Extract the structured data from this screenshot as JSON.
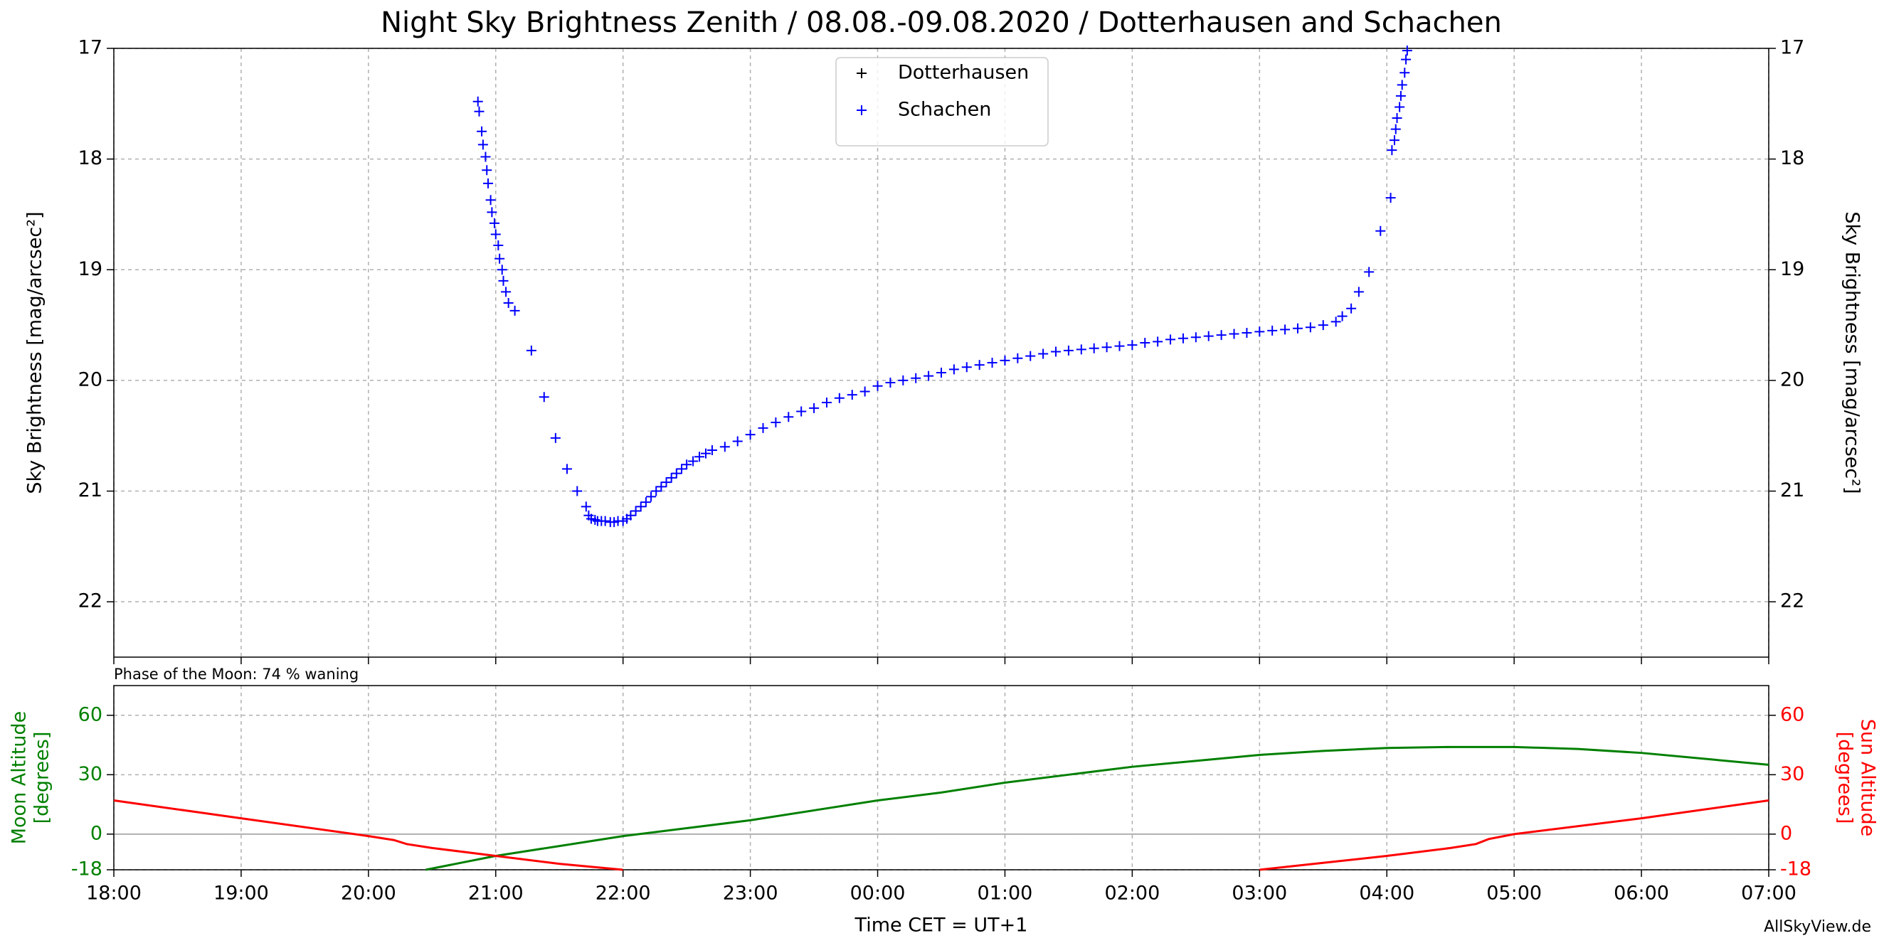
{
  "chart_data": [
    {
      "type": "scatter",
      "title": "Night Sky Brightness Zenith / 08.08.-09.08.2020 / Dotterhausen and Schachen",
      "ylabel": "Sky Brightness [mag/arcsec²]",
      "y2label": "Sky Brightness [mag/arcsec²]",
      "xlim": [
        18,
        31
      ],
      "xticks": [
        18,
        19,
        20,
        21,
        22,
        23,
        24,
        25,
        26,
        27,
        28,
        29,
        30,
        31
      ],
      "ylim": [
        22.5,
        17
      ],
      "yticks": [
        17,
        18,
        19,
        20,
        21,
        22
      ],
      "y2lim": [
        22.5,
        17
      ],
      "y2ticks": [
        17,
        18,
        19,
        20,
        21,
        22
      ],
      "grid": true,
      "legend": "upper center",
      "series": [
        {
          "name": "Dotterhausen",
          "color": "#000000",
          "x": [],
          "values": []
        },
        {
          "name": "Schachen",
          "color": "#0000ff",
          "x": [
            20.86,
            20.87,
            20.89,
            20.9,
            20.92,
            20.93,
            20.94,
            20.96,
            20.97,
            20.99,
            21.0,
            21.02,
            21.03,
            21.05,
            21.06,
            21.08,
            21.1,
            21.15,
            21.28,
            21.38,
            21.47,
            21.56,
            21.64,
            21.71,
            21.73,
            21.75,
            21.78,
            21.8,
            21.83,
            21.86,
            21.9,
            21.93,
            21.96,
            22.0,
            22.03,
            22.06,
            22.1,
            22.14,
            22.18,
            22.22,
            22.26,
            22.3,
            22.34,
            22.38,
            22.42,
            22.46,
            22.5,
            22.55,
            22.6,
            22.65,
            22.7,
            22.8,
            22.9,
            23.0,
            23.1,
            23.2,
            23.3,
            23.4,
            23.5,
            23.6,
            23.7,
            23.8,
            23.9,
            24.0,
            24.1,
            24.2,
            24.3,
            24.4,
            24.5,
            24.6,
            24.7,
            24.8,
            24.9,
            25.0,
            25.1,
            25.2,
            25.3,
            25.4,
            25.5,
            25.6,
            25.7,
            25.8,
            25.9,
            26.0,
            26.1,
            26.2,
            26.3,
            26.4,
            26.5,
            26.6,
            26.7,
            26.8,
            26.9,
            27.0,
            27.1,
            27.2,
            27.3,
            27.4,
            27.5,
            27.6,
            27.65,
            27.72,
            27.78,
            27.86,
            27.95,
            28.03,
            28.04,
            28.06,
            28.07,
            28.08,
            28.1,
            28.11,
            28.12,
            28.14,
            28.15,
            28.16
          ],
          "values": [
            17.48,
            17.57,
            17.75,
            17.87,
            17.98,
            18.1,
            18.22,
            18.37,
            18.48,
            18.58,
            18.68,
            18.78,
            18.9,
            19.0,
            19.1,
            19.2,
            19.3,
            19.37,
            19.73,
            20.15,
            20.52,
            20.8,
            21.0,
            21.14,
            21.22,
            21.25,
            21.26,
            21.27,
            21.27,
            21.27,
            21.28,
            21.28,
            21.27,
            21.27,
            21.25,
            21.22,
            21.18,
            21.14,
            21.1,
            21.05,
            21.0,
            20.96,
            20.92,
            20.88,
            20.84,
            20.8,
            20.76,
            20.73,
            20.69,
            20.66,
            20.63,
            20.6,
            20.55,
            20.49,
            20.43,
            20.38,
            20.33,
            20.28,
            20.25,
            20.2,
            20.16,
            20.13,
            20.1,
            20.05,
            20.02,
            20.0,
            19.98,
            19.96,
            19.93,
            19.9,
            19.88,
            19.86,
            19.84,
            19.82,
            19.8,
            19.78,
            19.76,
            19.74,
            19.73,
            19.72,
            19.71,
            19.7,
            19.69,
            19.68,
            19.66,
            19.65,
            19.63,
            19.62,
            19.61,
            19.6,
            19.59,
            19.58,
            19.57,
            19.56,
            19.55,
            19.54,
            19.53,
            19.52,
            19.5,
            19.47,
            19.42,
            19.35,
            19.2,
            19.02,
            18.65,
            18.35,
            17.92,
            17.83,
            17.73,
            17.63,
            17.53,
            17.43,
            17.33,
            17.22,
            17.1,
            17.02
          ]
        }
      ]
    },
    {
      "type": "line",
      "annotation": "Phase of the Moon: 74 % waning",
      "ylabel": [
        "Moon Altitude",
        "[degrees]"
      ],
      "y2label": [
        "Sun Altitude",
        "[degrees]"
      ],
      "xlabel": "Time CET = UT+1",
      "source": "AllSkyView.de",
      "xlim": [
        18,
        31
      ],
      "xticks": [
        {
          "value": 18,
          "label": "18:00"
        },
        {
          "value": 19,
          "label": "19:00"
        },
        {
          "value": 20,
          "label": "20:00"
        },
        {
          "value": 21,
          "label": "21:00"
        },
        {
          "value": 22,
          "label": "22:00"
        },
        {
          "value": 23,
          "label": "23:00"
        },
        {
          "value": 24,
          "label": "00:00"
        },
        {
          "value": 25,
          "label": "01:00"
        },
        {
          "value": 26,
          "label": "02:00"
        },
        {
          "value": 27,
          "label": "03:00"
        },
        {
          "value": 28,
          "label": "04:00"
        },
        {
          "value": 29,
          "label": "05:00"
        },
        {
          "value": 30,
          "label": "06:00"
        },
        {
          "value": 31,
          "label": "07:00"
        }
      ],
      "ylim": [
        -18,
        75
      ],
      "yticks": [
        -18,
        0,
        30,
        60
      ],
      "y2lim": [
        -18,
        75
      ],
      "y2ticks": [
        -18,
        0,
        30,
        60
      ],
      "grid": true,
      "reference_line": 0,
      "series": [
        {
          "name": "Moon Altitude",
          "color": "#008000",
          "x": [
            20.45,
            21,
            21.5,
            21.8,
            22,
            22.5,
            23,
            23.5,
            24,
            24.5,
            25,
            25.5,
            26,
            26.5,
            27,
            27.5,
            28,
            28.5,
            29,
            29.5,
            30,
            30.5,
            31
          ],
          "values": [
            -18,
            -11,
            -6,
            -3,
            -1,
            3,
            7,
            12,
            17,
            21,
            26,
            30,
            34,
            37,
            40,
            42,
            43.5,
            44,
            44,
            43,
            41,
            38,
            35
          ]
        },
        {
          "name": "Sun Altitude",
          "color": "#ff0000",
          "axis": "y2",
          "x": [
            18,
            19,
            20,
            20.2,
            20.3,
            20.5,
            21,
            21.5,
            22.0,
            24.5,
            27.0,
            27.5,
            28,
            28.5,
            28.7,
            28.8,
            29,
            30,
            31
          ],
          "values": [
            17,
            8,
            -1,
            -3,
            -5,
            -7,
            -11,
            -15,
            -18,
            null,
            -18,
            -14.5,
            -11,
            -7,
            -5,
            -2.5,
            0,
            8,
            17
          ]
        }
      ]
    }
  ]
}
